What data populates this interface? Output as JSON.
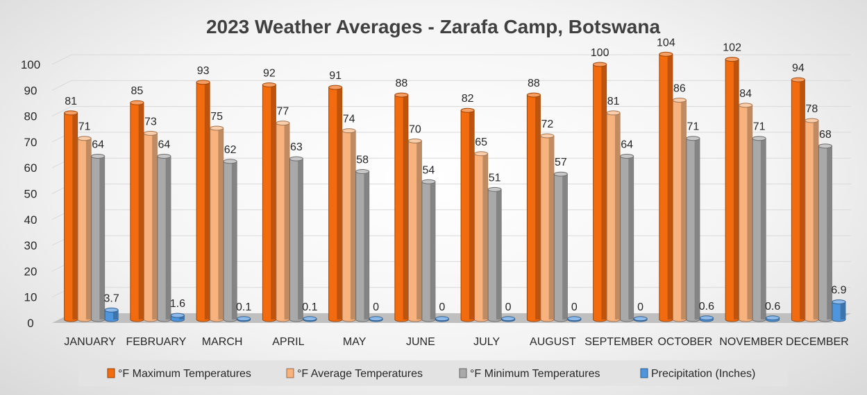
{
  "chart_data": {
    "type": "bar",
    "title": "2023 Weather Averages - Zarafa Camp, Botswana",
    "categories": [
      "JANUARY",
      "FEBRUARY",
      "MARCH",
      "APRIL",
      "MAY",
      "JUNE",
      "JULY",
      "AUGUST",
      "SEPTEMBER",
      "OCTOBER",
      "NOVEMBER",
      "DECEMBER"
    ],
    "series": [
      {
        "name": "°F Maximum Temperatures",
        "color": "#f26b0f",
        "values": [
          81,
          85,
          93,
          92,
          91,
          88,
          82,
          88,
          100,
          104,
          102,
          94
        ]
      },
      {
        "name": "°F Average Temperatures",
        "color": "#f7b27e",
        "values": [
          71,
          73,
          75,
          77,
          74,
          70,
          65,
          72,
          81,
          86,
          84,
          78
        ]
      },
      {
        "name": "°F Minimum Temperatures",
        "color": "#a9a9a9",
        "values": [
          64,
          64,
          62,
          63,
          58,
          54,
          51,
          57,
          64,
          71,
          71,
          68
        ]
      },
      {
        "name": "Precipitation (Inches)",
        "color": "#4f95dc",
        "values": [
          3.7,
          1.6,
          0.1,
          0.1,
          0,
          0,
          0,
          0,
          0,
          0.6,
          0.6,
          6.9
        ]
      }
    ],
    "ylim": [
      0,
      100
    ],
    "yticks": [
      0,
      10,
      20,
      30,
      40,
      50,
      60,
      70,
      80,
      90,
      100
    ],
    "grid": true,
    "legend_position": "bottom",
    "xlabel": "",
    "ylabel": ""
  }
}
